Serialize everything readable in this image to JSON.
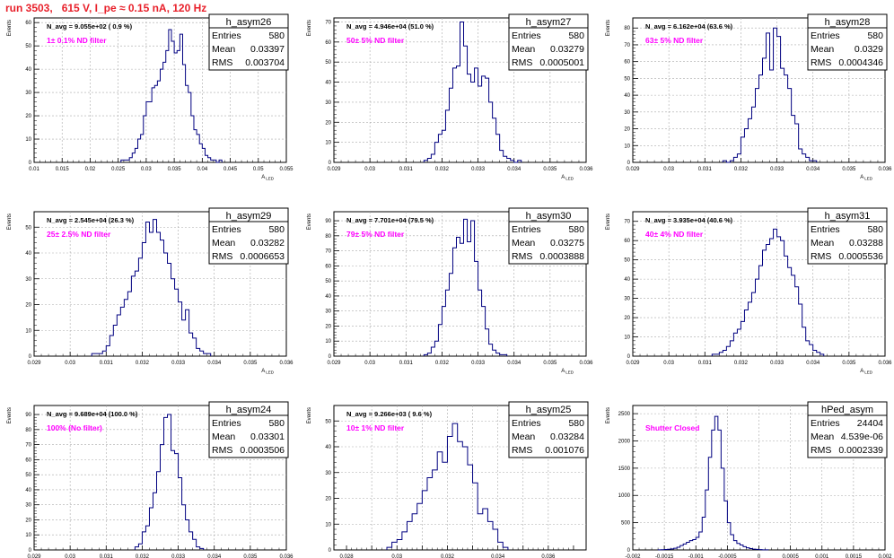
{
  "page_title": "run 3503,   615 V, I_pe ≈ 0.15 nA, 120 Hz",
  "stats_labels": {
    "entries": "Entries",
    "mean": "Mean",
    "rms": "RMS"
  },
  "colors": {
    "histogram": "#000080",
    "annotation": "#ff00ff",
    "title": "#e8202a",
    "grid": "#aaaaaa"
  },
  "chart_data": [
    {
      "type": "histogram",
      "name": "h_asym26",
      "nav": "N_avg = 9.055e+02 ( 0.9 %)",
      "note": "1± 0.1% ND filter",
      "stats": {
        "entries": "580",
        "mean": "0.03397",
        "rms": "0.003704"
      },
      "ylabel": "Events",
      "xlabel": "A_LED",
      "xlim": [
        0.01,
        0.055
      ],
      "ylim": [
        0,
        62
      ],
      "xticks": [
        0.01,
        0.015,
        0.02,
        0.025,
        0.03,
        0.035,
        0.04,
        0.045,
        0.05,
        0.055
      ],
      "xtick_labels": [
        "0.01",
        "0.015",
        "0.02",
        "0.025",
        "0.03",
        "0.035",
        "0.04",
        "0.045",
        "0.05",
        "0.055"
      ],
      "yticks": [
        0,
        10,
        20,
        30,
        40,
        50,
        60
      ],
      "ytick_labels": [
        "0",
        "10",
        "20",
        "30",
        "40",
        "50",
        "60"
      ],
      "bin_start": 0.0255,
      "bin_width": 0.0005,
      "counts": [
        1,
        1,
        1,
        2,
        4,
        6,
        10,
        12,
        20,
        26,
        26,
        32,
        33,
        35,
        40,
        43,
        48,
        57,
        52,
        47,
        48,
        55,
        42,
        33,
        30,
        20,
        14,
        12,
        8,
        6,
        3,
        2,
        1,
        1,
        0,
        1
      ]
    },
    {
      "type": "histogram",
      "name": "h_asym27",
      "nav": "N_avg = 4.946e+04 (51.0 %)",
      "note": "50± 5% ND filter",
      "stats": {
        "entries": "580",
        "mean": "0.03279",
        "rms": "0.0005001"
      },
      "ylabel": "Events",
      "xlabel": "A_LED",
      "xlim": [
        0.029,
        0.036
      ],
      "ylim": [
        0,
        72
      ],
      "xticks": [
        0.029,
        0.03,
        0.031,
        0.032,
        0.033,
        0.034,
        0.035,
        0.036
      ],
      "xtick_labels": [
        "0.029",
        "0.03",
        "0.031",
        "0.032",
        "0.033",
        "0.034",
        "0.035",
        "0.036"
      ],
      "yticks": [
        0,
        10,
        20,
        30,
        40,
        50,
        60,
        70
      ],
      "ytick_labels": [
        "0",
        "10",
        "20",
        "30",
        "40",
        "50",
        "60",
        "70"
      ],
      "bin_start": 0.0315,
      "bin_width": 0.0001,
      "counts": [
        1,
        2,
        4,
        10,
        14,
        16,
        26,
        37,
        47,
        48,
        70,
        58,
        44,
        40,
        47,
        38,
        43,
        42,
        30,
        22,
        14,
        6,
        3,
        2,
        1,
        0,
        1
      ]
    },
    {
      "type": "histogram",
      "name": "h_asym28",
      "nav": "N_avg = 6.162e+04 (63.6 %)",
      "note": "63± 5% ND filter",
      "stats": {
        "entries": "580",
        "mean": "0.0329",
        "rms": "0.0004346"
      },
      "ylabel": "Events",
      "xlabel": "A_LED",
      "xlim": [
        0.029,
        0.036
      ],
      "ylim": [
        0,
        86
      ],
      "xticks": [
        0.029,
        0.03,
        0.031,
        0.032,
        0.033,
        0.034,
        0.035,
        0.036
      ],
      "xtick_labels": [
        "0.029",
        "0.03",
        "0.031",
        "0.032",
        "0.033",
        "0.034",
        "0.035",
        "0.036"
      ],
      "yticks": [
        0,
        10,
        20,
        30,
        40,
        50,
        60,
        70,
        80
      ],
      "ytick_labels": [
        "0",
        "10",
        "20",
        "30",
        "40",
        "50",
        "60",
        "70",
        "80"
      ],
      "bin_start": 0.0315,
      "bin_width": 0.0001,
      "counts": [
        1,
        0,
        1,
        3,
        5,
        15,
        20,
        26,
        33,
        44,
        52,
        62,
        77,
        55,
        80,
        75,
        56,
        52,
        44,
        28,
        23,
        8,
        5,
        3,
        1,
        1
      ]
    },
    {
      "type": "histogram",
      "name": "h_asym29",
      "nav": "N_avg = 2.545e+04 (26.3 %)",
      "note": "25± 2.5% ND filter",
      "stats": {
        "entries": "580",
        "mean": "0.03282",
        "rms": "0.0006653"
      },
      "ylabel": "Events",
      "xlabel": "A_LED",
      "xlim": [
        0.029,
        0.036
      ],
      "ylim": [
        0,
        56
      ],
      "xticks": [
        0.029,
        0.03,
        0.031,
        0.032,
        0.033,
        0.034,
        0.035,
        0.036
      ],
      "xtick_labels": [
        "0.029",
        "0.03",
        "0.031",
        "0.032",
        "0.033",
        "0.034",
        "0.035",
        "0.036"
      ],
      "yticks": [
        0,
        10,
        20,
        30,
        40,
        50
      ],
      "ytick_labels": [
        "0",
        "10",
        "20",
        "30",
        "40",
        "50"
      ],
      "bin_start": 0.0306,
      "bin_width": 0.0001,
      "counts": [
        1,
        1,
        1,
        2,
        4,
        8,
        12,
        16,
        19,
        22,
        25,
        31,
        33,
        38,
        44,
        52,
        48,
        53,
        48,
        45,
        40,
        36,
        30,
        26,
        21,
        14,
        18,
        9,
        7,
        3,
        2,
        1,
        1
      ]
    },
    {
      "type": "histogram",
      "name": "h_asym30",
      "nav": "N_avg = 7.701e+04 (79.5 %)",
      "note": "79± 5% ND filter",
      "stats": {
        "entries": "580",
        "mean": "0.03275",
        "rms": "0.0003888"
      },
      "ylabel": "Events",
      "xlabel": "A_LED",
      "xlim": [
        0.029,
        0.036
      ],
      "ylim": [
        0,
        96
      ],
      "xticks": [
        0.029,
        0.03,
        0.031,
        0.032,
        0.033,
        0.034,
        0.035,
        0.036
      ],
      "xtick_labels": [
        "0.029",
        "0.03",
        "0.031",
        "0.032",
        "0.033",
        "0.034",
        "0.035",
        "0.036"
      ],
      "yticks": [
        0,
        10,
        20,
        30,
        40,
        50,
        60,
        70,
        80,
        90
      ],
      "ytick_labels": [
        "0",
        "10",
        "20",
        "30",
        "40",
        "50",
        "60",
        "70",
        "80",
        "90"
      ],
      "bin_start": 0.0315,
      "bin_width": 0.0001,
      "counts": [
        1,
        2,
        6,
        10,
        21,
        33,
        44,
        55,
        72,
        79,
        75,
        91,
        76,
        90,
        63,
        44,
        33,
        18,
        8,
        4,
        2,
        1,
        1
      ]
    },
    {
      "type": "histogram",
      "name": "h_asym31",
      "nav": "N_avg = 3.935e+04 (40.6 %)",
      "note": "40± 4% ND filter",
      "stats": {
        "entries": "580",
        "mean": "0.03288",
        "rms": "0.0005536"
      },
      "ylabel": "Events",
      "xlabel": "A_LED",
      "xlim": [
        0.029,
        0.036
      ],
      "ylim": [
        0,
        75
      ],
      "xticks": [
        0.029,
        0.03,
        0.031,
        0.032,
        0.033,
        0.034,
        0.035,
        0.036
      ],
      "xtick_labels": [
        "0.029",
        "0.03",
        "0.031",
        "0.032",
        "0.033",
        "0.034",
        "0.035",
        "0.036"
      ],
      "yticks": [
        0,
        10,
        20,
        30,
        40,
        50,
        60,
        70
      ],
      "ytick_labels": [
        "0",
        "10",
        "20",
        "30",
        "40",
        "50",
        "60",
        "70"
      ],
      "bin_start": 0.0312,
      "bin_width": 0.0001,
      "counts": [
        1,
        1,
        2,
        3,
        5,
        8,
        12,
        14,
        18,
        24,
        28,
        33,
        40,
        47,
        55,
        58,
        61,
        66,
        62,
        60,
        52,
        46,
        42,
        36,
        27,
        15,
        8,
        6,
        3,
        2,
        1
      ]
    },
    {
      "type": "histogram",
      "name": "h_asym24",
      "nav": "N_avg = 9.689e+04 (100.0 %)",
      "note": "100% (No filter)",
      "stats": {
        "entries": "580",
        "mean": "0.03301",
        "rms": "0.0003506"
      },
      "ylabel": "Events",
      "xlabel": "A_LED",
      "xlim": [
        0.029,
        0.036
      ],
      "ylim": [
        0,
        96
      ],
      "xticks": [
        0.029,
        0.03,
        0.031,
        0.032,
        0.033,
        0.034,
        0.035,
        0.036
      ],
      "xtick_labels": [
        "0.029",
        "0.03",
        "0.031",
        "0.032",
        "0.033",
        "0.034",
        "0.035",
        "0.036"
      ],
      "yticks": [
        0,
        10,
        20,
        30,
        40,
        50,
        60,
        70,
        80,
        90
      ],
      "ytick_labels": [
        "0",
        "10",
        "20",
        "30",
        "40",
        "50",
        "60",
        "70",
        "80",
        "90"
      ],
      "bin_start": 0.0318,
      "bin_width": 0.0001,
      "counts": [
        2,
        4,
        12,
        16,
        28,
        38,
        52,
        70,
        88,
        90,
        66,
        64,
        48,
        30,
        20,
        12,
        7,
        2,
        1
      ]
    },
    {
      "type": "histogram",
      "name": "h_asym25",
      "nav": "N_avg = 9.266e+03 ( 9.6 %)",
      "note": "10± 1% ND filter",
      "stats": {
        "entries": "580",
        "mean": "0.03284",
        "rms": "0.001076"
      },
      "ylabel": "Events",
      "xlabel": "A_LED",
      "xlim": [
        0.0275,
        0.0375
      ],
      "ylim": [
        0,
        56
      ],
      "xticks": [
        0.028,
        0.029,
        0.03,
        0.031,
        0.032,
        0.033,
        0.034,
        0.035,
        0.036,
        0.037
      ],
      "xtick_labels": [
        "0.028",
        "",
        "0.03",
        "",
        "0.032",
        "",
        "0.034",
        "",
        "0.036",
        ""
      ],
      "yticks": [
        0,
        10,
        20,
        30,
        40,
        50
      ],
      "ytick_labels": [
        "0",
        "10",
        "20",
        "30",
        "40",
        "50"
      ],
      "bin_start": 0.0296,
      "bin_width": 0.0002,
      "counts": [
        1,
        3,
        4,
        7,
        11,
        14,
        18,
        23,
        28,
        31,
        38,
        34,
        44,
        49,
        42,
        40,
        33,
        26,
        14,
        16,
        11,
        8,
        3,
        1
      ]
    },
    {
      "type": "histogram",
      "name": "hPed_asym",
      "nav": "",
      "note": "Shutter Closed",
      "stats": {
        "entries": "24404",
        "mean": "4.539e-06",
        "rms": "0.0002339"
      },
      "ylabel": "Events",
      "xlabel": "A_LED",
      "xlim": [
        -0.002,
        0.002
      ],
      "ylim": [
        0,
        2650
      ],
      "xticks": [
        -0.002,
        -0.0015,
        -0.001,
        -0.0005,
        0,
        0.0005,
        0.001,
        0.0015,
        0.002
      ],
      "xtick_labels": [
        "-0.002",
        "-0.0015",
        "-0.001",
        "-0.0005",
        "0",
        "0.0005",
        "0.001",
        "0.0015",
        "0.002"
      ],
      "yticks": [
        0,
        500,
        1000,
        1500,
        2000,
        2500
      ],
      "ytick_labels": [
        "0",
        "500",
        "1000",
        "1500",
        "2000",
        "2500"
      ],
      "bin_start": -0.0016,
      "bin_width": 5e-05,
      "counts": [
        2,
        5,
        8,
        12,
        18,
        30,
        50,
        80,
        110,
        140,
        170,
        190,
        230,
        330,
        600,
        1100,
        1700,
        2200,
        2450,
        2200,
        1500,
        900,
        500,
        280,
        170,
        120,
        90,
        60,
        40,
        25,
        15,
        10,
        6,
        3,
        2
      ]
    }
  ]
}
